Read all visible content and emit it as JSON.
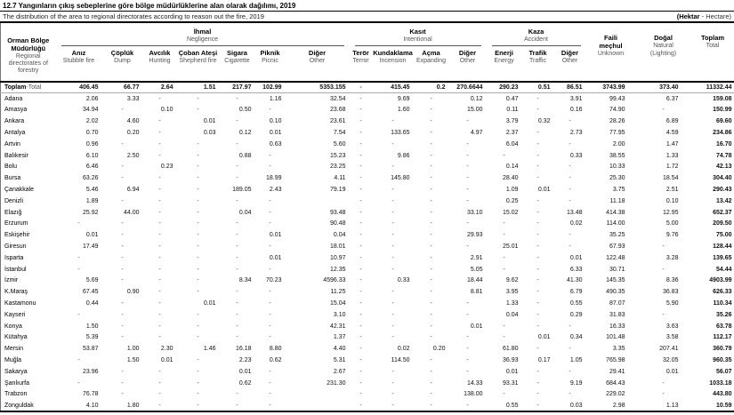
{
  "header": {
    "title": "12.7 Yangınların çıkış sebeplerine göre bölge müdürlüklerine alan olarak dağılımı, 2019",
    "subtitle": "The distribution of the area to regional directorates according to reason out the fire, 2019",
    "unit_tr": "(Hektar",
    "unit_en": " - Hectare)"
  },
  "table": {
    "name_header": {
      "tr": "Orman Bölge Müdürlüğü",
      "en": "Regional directorates of forestry"
    },
    "groups": [
      {
        "tr": "İhmal",
        "en": "Negligence"
      },
      {
        "tr": "Kasıt",
        "en": "Intentional"
      },
      {
        "tr": "Kaza",
        "en": "Accident"
      }
    ],
    "columns": [
      {
        "key": "aniz",
        "tr": "Anız",
        "en": "Stubble fire"
      },
      {
        "key": "copluk",
        "tr": "Çöplük",
        "en": "Dump"
      },
      {
        "key": "avcilik",
        "tr": "Avcılık",
        "en": "Hunting"
      },
      {
        "key": "coban-atesi",
        "tr": "Çoban Ateşi",
        "en": "Shepherd fire"
      },
      {
        "key": "sigara",
        "tr": "Sigara",
        "en": "Cigarette"
      },
      {
        "key": "piknik",
        "tr": "Piknik",
        "en": "Picnic"
      },
      {
        "key": "diger-ihmal",
        "tr": "Diğer",
        "en": "Other"
      },
      {
        "key": "teror",
        "tr": "Terör",
        "en": "Terror"
      },
      {
        "key": "kundaklama",
        "tr": "Kundaklama",
        "en": "Incension",
        "wide": true
      },
      {
        "key": "acma",
        "tr": "Açma",
        "en": "Expanding"
      },
      {
        "key": "diger-kasit",
        "tr": "Diğer",
        "en": "Other"
      },
      {
        "key": "enerji",
        "tr": "Enerji",
        "en": "Energy"
      },
      {
        "key": "trafik",
        "tr": "Trafik",
        "en": "Traffic"
      },
      {
        "key": "diger-kaza",
        "tr": "Diğer",
        "en": "Other"
      }
    ],
    "tail_columns": [
      {
        "key": "faili-mechul",
        "tr": "Faili meçhul",
        "en": "Unknown",
        "en2": ""
      },
      {
        "key": "dogal",
        "tr": "Doğal",
        "en": "Natural",
        "en2": "(Lighting)"
      },
      {
        "key": "toplam",
        "tr": "Toplam",
        "en": "Total",
        "en2": ""
      }
    ],
    "rows": [
      {
        "name": "Toplam",
        "name2": "-Total",
        "total": true,
        "values": [
          "406.45",
          "66.77",
          "2.64",
          "1.51",
          "217.97",
          "102.99",
          "5353.155",
          "-",
          "415.45",
          "0.2",
          "270.6644",
          "290.23",
          "0.51",
          "86.51",
          "3743.99",
          "373.40",
          "11332.44"
        ]
      },
      {
        "name": "Adana",
        "values": [
          "2.06",
          "3.33",
          "-",
          "-",
          "-",
          "1.16",
          "32.54",
          "-",
          "9.69",
          "-",
          "0.12",
          "0.47",
          "-",
          "3.91",
          "99.43",
          "6.37",
          "159.08"
        ]
      },
      {
        "name": "Amasya",
        "values": [
          "34.94",
          "-",
          "0.10",
          "-",
          "0.50",
          "-",
          "23.68",
          "-",
          "1.60",
          "-",
          "15.00",
          "0.11",
          "-",
          "0.16",
          "74.90",
          "-",
          "150.99"
        ]
      },
      {
        "name": "Ankara",
        "values": [
          "2.02",
          "4.60",
          "-",
          "0.01",
          "-",
          "0.10",
          "23.61",
          "-",
          "-",
          "-",
          "-",
          "3.79",
          "0.32",
          "-",
          "28.26",
          "6.89",
          "69.60"
        ]
      },
      {
        "name": "Antalya",
        "values": [
          "0.70",
          "0.20",
          "-",
          "0.03",
          "0.12",
          "0.01",
          "7.54",
          "-",
          "133.65",
          "-",
          "4.97",
          "2.37",
          "-",
          "2.73",
          "77.95",
          "4.59",
          "234.86"
        ]
      },
      {
        "name": "Artvin",
        "values": [
          "0.96",
          "-",
          "-",
          "-",
          "-",
          "0.63",
          "5.60",
          "-",
          "-",
          "-",
          "-",
          "6.04",
          "-",
          "-",
          "2.00",
          "1.47",
          "16.70"
        ]
      },
      {
        "name": "Balıkesir",
        "values": [
          "6.10",
          "2.50",
          "-",
          "-",
          "0.88",
          "-",
          "15.23",
          "-",
          "9.86",
          "-",
          "-",
          "-",
          "-",
          "0.33",
          "38.55",
          "1.33",
          "74.78"
        ]
      },
      {
        "name": "Bolu",
        "values": [
          "6.46",
          "-",
          "0.23",
          "-",
          "-",
          "-",
          "23.25",
          "-",
          "-",
          "-",
          "-",
          "0.14",
          "-",
          "-",
          "10.33",
          "1.72",
          "42.13"
        ]
      },
      {
        "name": "Bursa",
        "values": [
          "63.26",
          "-",
          "-",
          "-",
          "-",
          "18.99",
          "4.11",
          "-",
          "145.80",
          "-",
          "-",
          "28.40",
          "-",
          "-",
          "25.30",
          "18.54",
          "304.40"
        ]
      },
      {
        "name": "Çanakkale",
        "values": [
          "5.46",
          "6.94",
          "-",
          "-",
          "189.05",
          "2.43",
          "79.19",
          "-",
          "-",
          "-",
          "-",
          "1.09",
          "0.01",
          "-",
          "3.75",
          "2.51",
          "290.43"
        ]
      },
      {
        "name": "Denizli",
        "values": [
          "1.89",
          "-",
          "-",
          "-",
          "-",
          "-",
          "",
          "-",
          "-",
          "-",
          "-",
          "0.25",
          "-",
          "-",
          "11.18",
          "0.10",
          "13.42"
        ]
      },
      {
        "name": "Elazığ",
        "values": [
          "25.92",
          "44.00",
          "-",
          "-",
          "0.04",
          "-",
          "93.48",
          "-",
          "-",
          "-",
          "33.10",
          "15.02",
          "-",
          "13.48",
          "414.38",
          "12.95",
          "652.37"
        ]
      },
      {
        "name": "Erzurum",
        "values": [
          "-",
          "-",
          "-",
          "-",
          "-",
          "-",
          "90.48",
          "-",
          "-",
          "-",
          "-",
          "-",
          "-",
          "0.02",
          "114.00",
          "5.00",
          "209.50"
        ]
      },
      {
        "name": "Eskişehir",
        "values": [
          "0.01",
          "-",
          "-",
          "-",
          "-",
          "0.01",
          "0.04",
          "-",
          "-",
          "-",
          "29.93",
          "-",
          "-",
          "-",
          "35.25",
          "9.76",
          "75.00"
        ]
      },
      {
        "name": "Giresun",
        "values": [
          "17.49",
          "-",
          "-",
          "-",
          "-",
          "-",
          "18.01",
          "-",
          "-",
          "-",
          "-",
          "25.01",
          "-",
          "-",
          "67.93",
          "-",
          "128.44"
        ]
      },
      {
        "name": "Isparta",
        "values": [
          "-",
          "-",
          "-",
          "-",
          "-",
          "0.01",
          "10.97",
          "-",
          "-",
          "-",
          "2.91",
          "-",
          "-",
          "0.01",
          "122.48",
          "3.28",
          "139.65"
        ]
      },
      {
        "name": "İstanbul",
        "values": [
          "-",
          "-",
          "-",
          "-",
          "-",
          "-",
          "12.35",
          "-",
          "-",
          "-",
          "5.05",
          "-",
          "-",
          "6.33",
          "30.71",
          "-",
          "54.44"
        ]
      },
      {
        "name": "İzmir",
        "values": [
          "5.69",
          "-",
          "-",
          "-",
          "8.34",
          "70.23",
          "4596.33",
          "-",
          "0.33",
          "-",
          "18.44",
          "9.62",
          "-",
          "41.30",
          "145.35",
          "8.36",
          "4903.99"
        ]
      },
      {
        "name": "K.Maraş",
        "values": [
          "67.45",
          "0.90",
          "-",
          "-",
          "-",
          "-",
          "11.25",
          "-",
          "-",
          "-",
          "8.81",
          "3.95",
          "-",
          "6.79",
          "490.35",
          "36.83",
          "626.33"
        ]
      },
      {
        "name": "Kastamonu",
        "values": [
          "0.44",
          "-",
          "-",
          "0.01",
          "-",
          "-",
          "15.04",
          "-",
          "-",
          "-",
          "-",
          "1.33",
          "-",
          "0.55",
          "87.07",
          "5.90",
          "110.34"
        ]
      },
      {
        "name": "Kayseri",
        "values": [
          "-",
          "-",
          "-",
          "-",
          "-",
          "-",
          "3.10",
          "-",
          "-",
          "-",
          "-",
          "0.04",
          "-",
          "0.29",
          "31.83",
          "-",
          "35.26"
        ]
      },
      {
        "name": "Konya",
        "values": [
          "1.50",
          "-",
          "-",
          "-",
          "-",
          "-",
          "42.31",
          "-",
          "-",
          "-",
          "0.01",
          "-",
          "-",
          "-",
          "16.33",
          "3.63",
          "63.78"
        ]
      },
      {
        "name": "Kütahya",
        "values": [
          "5.39",
          "-",
          "-",
          "-",
          "-",
          "-",
          "1.37",
          "-",
          "-",
          "-",
          "-",
          "-",
          "0.01",
          "0.34",
          "101.48",
          "3.58",
          "112.17"
        ]
      },
      {
        "name": "Mersin",
        "values": [
          "53.87",
          "1.00",
          "2.30",
          "1.46",
          "16.18",
          "8.80",
          "4.40",
          "-",
          "0.02",
          "0.20",
          "-",
          "61.80",
          "-",
          "-",
          "3.35",
          "207.41",
          "360.79"
        ]
      },
      {
        "name": "Muğla",
        "values": [
          "-",
          "1.50",
          "0.01",
          "-",
          "2.23",
          "0.62",
          "5.31",
          "-",
          "114.50",
          "-",
          "-",
          "36.93",
          "0.17",
          "1.05",
          "765.98",
          "32.05",
          "960.35"
        ]
      },
      {
        "name": "Sakarya",
        "values": [
          "23.96",
          "-",
          "-",
          "-",
          "0.01",
          "-",
          "2.67",
          "-",
          "-",
          "-",
          "-",
          "0.01",
          "-",
          "-",
          "29.41",
          "0.01",
          "56.07"
        ]
      },
      {
        "name": "Şanlıurfa",
        "values": [
          "-",
          "-",
          "-",
          "-",
          "0.62",
          "-",
          "231.30",
          "-",
          "-",
          "-",
          "14.33",
          "93.31",
          "-",
          "9.19",
          "684.43",
          "-",
          "1033.18"
        ]
      },
      {
        "name": "Trabzon",
        "values": [
          "76.78",
          "-",
          "-",
          "-",
          "-",
          "-",
          "",
          "-",
          "-",
          "-",
          "138.00",
          "-",
          "-",
          "-",
          "229.02",
          "-",
          "443.80"
        ]
      },
      {
        "name": "Zonguldak",
        "values": [
          "4.10",
          "1.80",
          "-",
          "-",
          "-",
          "-",
          "",
          "-",
          "-",
          "-",
          "-",
          "0.55",
          "-",
          "0.03",
          "2.98",
          "1.13",
          "10.59"
        ]
      }
    ]
  }
}
